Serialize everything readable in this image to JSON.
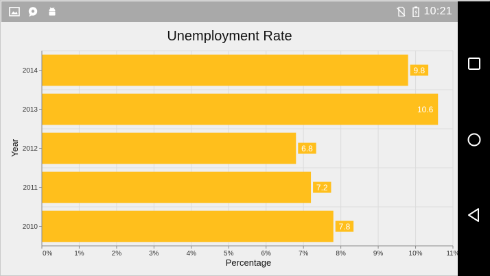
{
  "status_bar": {
    "time": "10:21",
    "left_icons": [
      "image-icon",
      "chat-icon",
      "android-icon"
    ],
    "right_icons": [
      "no-sim-icon",
      "battery-icon"
    ]
  },
  "nav_bar": {
    "buttons": [
      "recents-square-icon",
      "home-circle-icon",
      "back-triangle-icon"
    ]
  },
  "colors": {
    "bar": "#FFBF1C",
    "label_bg": "#FFBF1C",
    "grid": "#dcdcdc",
    "axis": "#8a8a8a"
  },
  "chart_data": {
    "type": "bar",
    "orientation": "horizontal",
    "title": "Unemployment Rate",
    "xlabel": "Percentage",
    "ylabel": "Year",
    "categories": [
      "2010",
      "2011",
      "2012",
      "2013",
      "2014"
    ],
    "values": [
      7.8,
      7.2,
      6.8,
      10.6,
      9.8
    ],
    "data_labels": [
      "7.8",
      "7.2",
      "6.8",
      "10.6",
      "9.8"
    ],
    "xlim": [
      0,
      11
    ],
    "x_ticks": [
      "0%",
      "1%",
      "2%",
      "3%",
      "4%",
      "5%",
      "6%",
      "7%",
      "8%",
      "9%",
      "10%",
      "11%"
    ],
    "grid": true,
    "legend": "none"
  }
}
